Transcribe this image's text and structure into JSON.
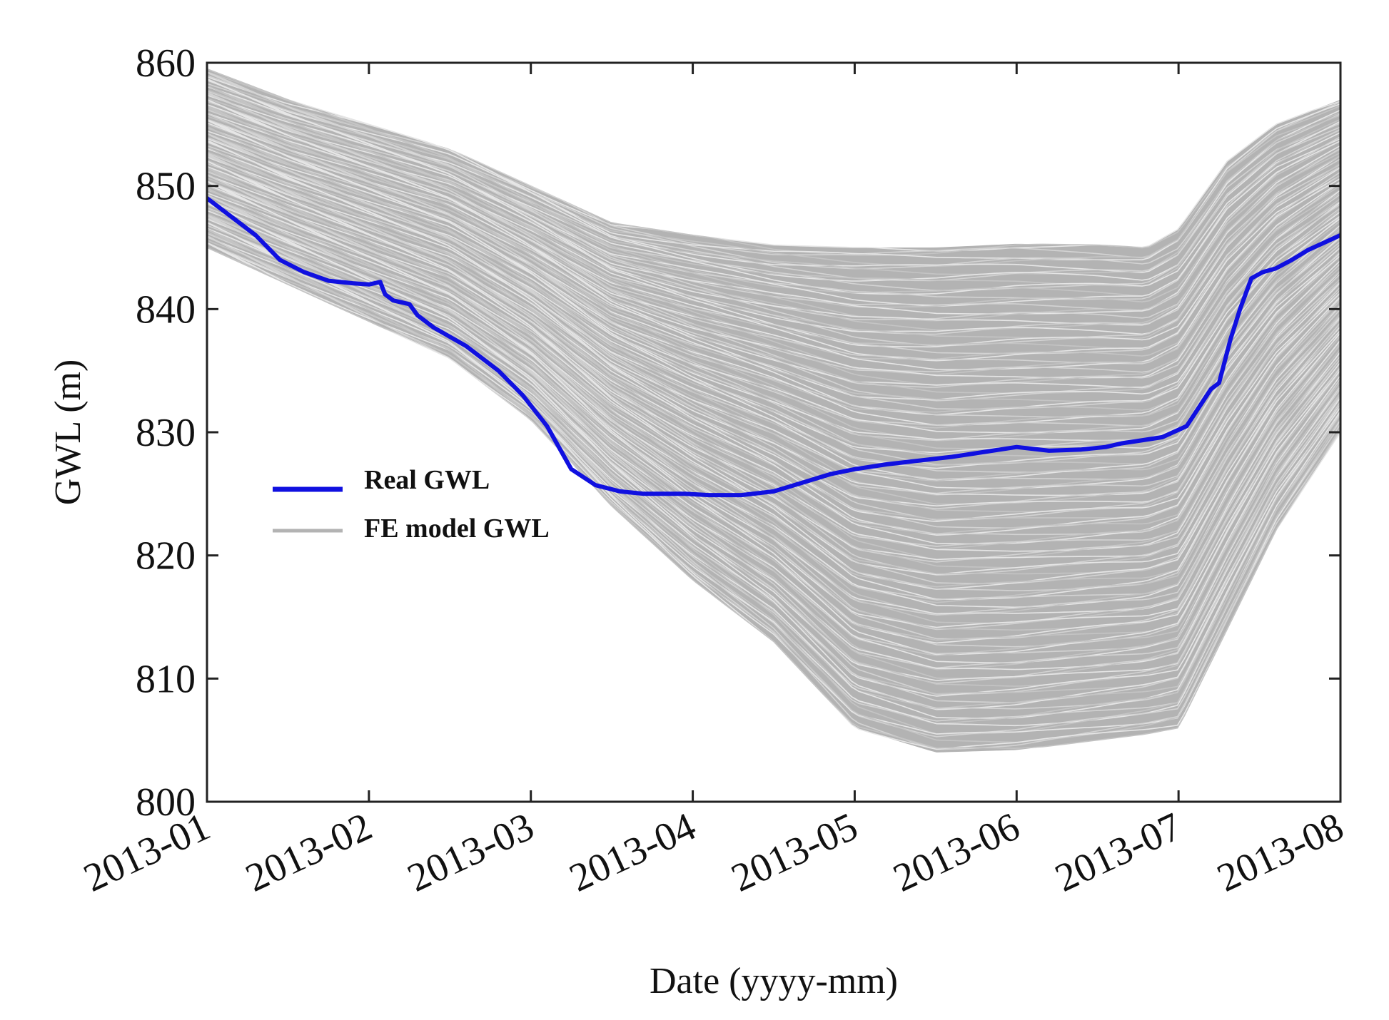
{
  "chart_data": {
    "type": "line",
    "title": "",
    "xlabel": "Date (yyyy-mm)",
    "ylabel": "GWL (m)",
    "ylim": [
      800,
      860
    ],
    "yticks": [
      800,
      810,
      820,
      830,
      840,
      850,
      860
    ],
    "xlim": [
      0,
      7
    ],
    "xticks": [
      {
        "value": 0,
        "label": "2013-01"
      },
      {
        "value": 1,
        "label": "2013-02"
      },
      {
        "value": 2,
        "label": "2013-03"
      },
      {
        "value": 3,
        "label": "2013-04"
      },
      {
        "value": 4,
        "label": "2013-05"
      },
      {
        "value": 5,
        "label": "2013-06"
      },
      {
        "value": 6,
        "label": "2013-07"
      },
      {
        "value": 7,
        "label": "2013-08"
      }
    ],
    "legend": {
      "placement": "center-left",
      "entries": [
        {
          "label": "Real GWL",
          "color": "#1010e0"
        },
        {
          "label": "FE model GWL",
          "color": "#b3b3b3"
        }
      ]
    },
    "series": [
      {
        "name": "Real GWL",
        "color": "#1010e0",
        "x": [
          0,
          0.15,
          0.3,
          0.45,
          0.6,
          0.75,
          0.9,
          1.0,
          1.07,
          1.1,
          1.15,
          1.25,
          1.3,
          1.4,
          1.6,
          1.8,
          1.95,
          2.1,
          2.25,
          2.4,
          2.55,
          2.7,
          2.85,
          2.95,
          3.1,
          3.3,
          3.5,
          3.7,
          3.85,
          4.0,
          4.2,
          4.4,
          4.6,
          4.8,
          5.0,
          5.2,
          5.4,
          5.55,
          5.65,
          5.75,
          5.9,
          6.05,
          6.1,
          6.15,
          6.2,
          6.25,
          6.32,
          6.38,
          6.45,
          6.52,
          6.6,
          6.7,
          6.8,
          6.9,
          7.0
        ],
        "values": [
          849.0,
          847.5,
          846.0,
          844.0,
          843.0,
          842.3,
          842.1,
          842.0,
          842.2,
          841.2,
          840.7,
          840.4,
          839.5,
          838.5,
          837.0,
          835.0,
          833.0,
          830.5,
          827.0,
          825.7,
          825.2,
          825.0,
          825.0,
          825.0,
          824.9,
          824.9,
          825.2,
          826.0,
          826.6,
          827.0,
          827.4,
          827.7,
          828.0,
          828.4,
          828.8,
          828.5,
          828.6,
          828.8,
          829.1,
          829.3,
          829.6,
          830.5,
          831.5,
          832.5,
          833.5,
          834.0,
          837.5,
          840.0,
          842.5,
          843.0,
          843.3,
          844.0,
          844.8,
          845.4,
          846.0
        ]
      }
    ],
    "model_envelope": {
      "name": "FE model GWL",
      "color": "#b3b3b3",
      "x": [
        0,
        0.5,
        1.0,
        1.5,
        2.0,
        2.5,
        3.0,
        3.5,
        4.0,
        4.5,
        5.0,
        5.5,
        5.8,
        6.0,
        6.3,
        6.6,
        7.0
      ],
      "upper": [
        859.5,
        857.0,
        855.0,
        853.0,
        850.0,
        847.0,
        846.0,
        845.2,
        845.0,
        845.0,
        845.3,
        845.2,
        845.0,
        846.5,
        852.0,
        855.0,
        857.0
      ],
      "lower": [
        845.0,
        842.0,
        839.0,
        836.0,
        831.0,
        824.0,
        818.0,
        813.0,
        806.0,
        804.0,
        804.2,
        805.0,
        805.5,
        806.0,
        814.0,
        822.0,
        830.0
      ]
    }
  }
}
